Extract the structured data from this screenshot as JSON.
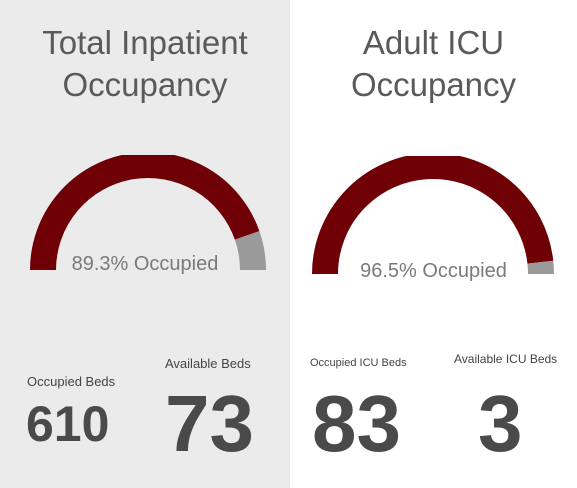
{
  "colors": {
    "occupied": "#6e0006",
    "available": "#9a9a9a",
    "panel_left_bg": "#ebebeb",
    "panel_right_bg": "#ffffff"
  },
  "inpatient": {
    "title_line1": "Total Inpatient",
    "title_line2": "Occupancy",
    "occupied_fraction": 0.893,
    "occupied_pct_text": "89.3% Occupied",
    "occupied_label": "Occupied Beds",
    "occupied_value": "610",
    "available_label": "Available Beds",
    "available_value": "73"
  },
  "icu": {
    "title_line1": "Adult ICU",
    "title_line2": "Occupancy",
    "occupied_fraction": 0.965,
    "occupied_pct_text": "96.5% Occupied",
    "occupied_label": "Occupied ICU Beds",
    "occupied_value": "83",
    "available_label": "Available ICU Beds",
    "available_value": "3"
  }
}
